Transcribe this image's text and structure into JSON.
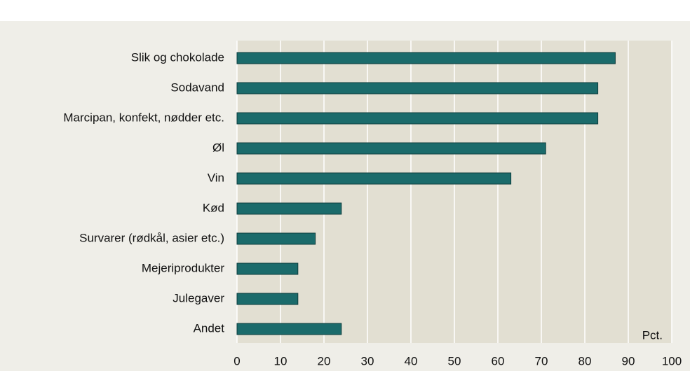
{
  "chart_data": {
    "type": "barh",
    "categories": [
      "Slik og chokolade",
      "Sodavand",
      "Marcipan, konfekt, nødder etc.",
      "Øl",
      "Vin",
      "Kød",
      "Survarer (rødkål, asier etc.)",
      "Mejeriprodukter",
      "Julegaver",
      "Andet"
    ],
    "values": [
      87,
      83,
      83,
      71,
      63,
      24,
      18,
      14,
      14,
      24
    ],
    "color": "#1b6b6b",
    "xlabel": "Pct.",
    "xlim": [
      0,
      100
    ],
    "xticks": [
      0,
      10,
      20,
      30,
      40,
      50,
      60,
      70,
      80,
      90,
      100
    ],
    "grid": true
  }
}
